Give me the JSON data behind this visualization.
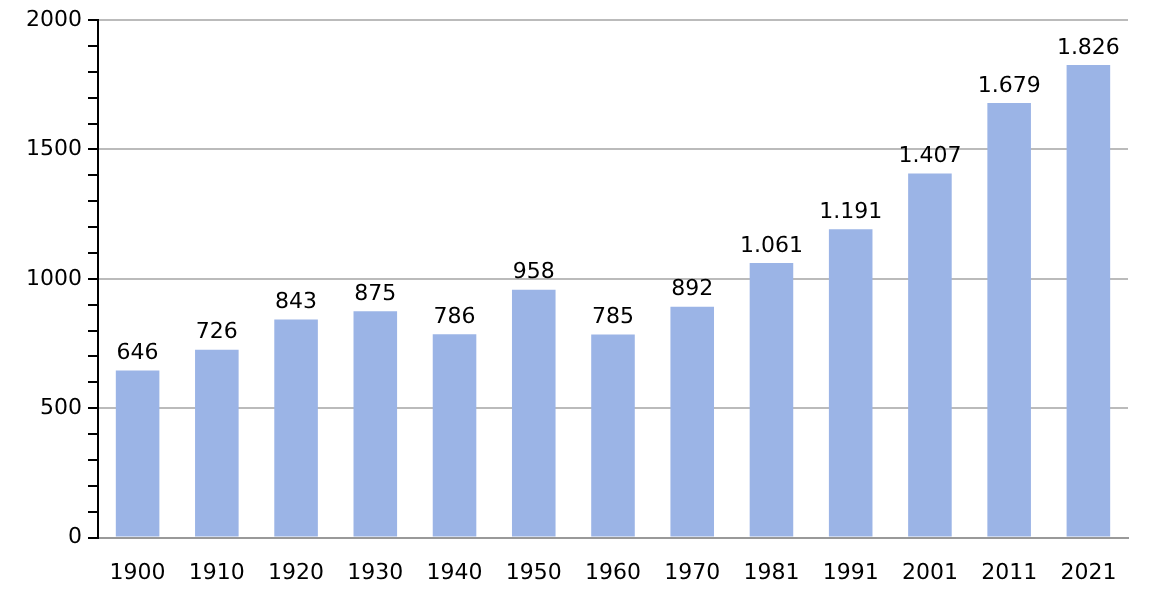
{
  "chart_data": {
    "type": "bar",
    "categories": [
      "1900",
      "1910",
      "1920",
      "1930",
      "1940",
      "1950",
      "1960",
      "1970",
      "1981",
      "1991",
      "2001",
      "2011",
      "2021"
    ],
    "values": [
      646,
      726,
      843,
      875,
      786,
      958,
      785,
      892,
      1061,
      1191,
      1407,
      1679,
      1826
    ],
    "value_labels": [
      "646",
      "726",
      "843",
      "875",
      "786",
      "958",
      "785",
      "892",
      "1.061",
      "1.191",
      "1.407",
      "1.679",
      "1.826"
    ],
    "color": "#9bb4e6",
    "ylim": [
      0,
      2000
    ],
    "yticks": [
      0,
      {
        "value": 100,
        "label": null
      },
      {
        "value": 200,
        "label": null
      },
      {
        "value": 300,
        "label": null
      },
      {
        "value": 400,
        "label": null
      },
      500,
      {
        "value": 600,
        "label": null
      },
      {
        "value": 700,
        "label": null
      },
      {
        "value": 800,
        "label": null
      },
      {
        "value": 900,
        "label": null
      },
      1000,
      {
        "value": 1100,
        "label": null
      },
      {
        "value": 1200,
        "label": null
      },
      {
        "value": 1300,
        "label": null
      },
      {
        "value": 1400,
        "label": null
      },
      1500,
      {
        "value": 1600,
        "label": null
      },
      {
        "value": 1700,
        "label": null
      },
      {
        "value": 1800,
        "label": null
      },
      {
        "value": 1900,
        "label": null
      },
      2000
    ],
    "grid": "y"
  }
}
